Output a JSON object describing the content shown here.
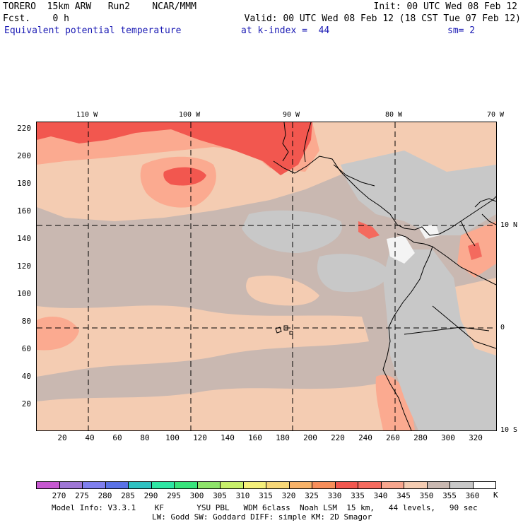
{
  "header": {
    "line1_left": "TORERO  15km ARW   Run2    NCAR/MMM",
    "line1_right": "Init: 00 UTC Wed 08 Feb 12",
    "line2_left": "Fcst.    0 h",
    "line2_right": "Valid: 00 UTC Wed 08 Feb 12 (18 CST Tue 07 Feb 12)",
    "field_name": "Equivalent potential temperature",
    "k_index": "at k-index =  44",
    "smoothing": "sm= 2"
  },
  "map": {
    "lon_labels": [
      "110 W",
      "100 W",
      "90 W",
      "80 W",
      "70 W"
    ],
    "lat_labels": [
      "10 N",
      "0",
      "10 S"
    ],
    "y_ticks": [
      "220",
      "200",
      "180",
      "160",
      "140",
      "120",
      "100",
      "80",
      "60",
      "40",
      "20"
    ],
    "x_ticks": [
      "20",
      "40",
      "60",
      "80",
      "100",
      "120",
      "140",
      "160",
      "180",
      "200",
      "220",
      "240",
      "260",
      "280",
      "300",
      "320"
    ],
    "colors": {
      "background": "#c9b8b1",
      "light_peach": "#f4ccb2",
      "peach": "#fbaa90",
      "salmon": "#f88470",
      "red": "#f2574f",
      "gray": "#c8c8c8",
      "white": "#f4f4f4"
    }
  },
  "colorbar": {
    "unit": "K",
    "labels": [
      "270",
      "275",
      "280",
      "285",
      "290",
      "295",
      "300",
      "305",
      "310",
      "315",
      "320",
      "325",
      "330",
      "335",
      "340",
      "345",
      "350",
      "355",
      "360"
    ],
    "colors": [
      "#c658d0",
      "#9f77d6",
      "#7f7fee",
      "#5a72e6",
      "#2fc2c2",
      "#2ee6a4",
      "#38e47c",
      "#8ee46a",
      "#c8f06a",
      "#f5f07a",
      "#f8d878",
      "#f7b268",
      "#f88e5a",
      "#f2574f",
      "#f46a5e",
      "#f8a68e",
      "#f4ccb2",
      "#c9b8b1",
      "#c8c8c8",
      "#ffffff"
    ]
  },
  "footer": {
    "line1": "Model Info: V3.3.1    KF       YSU PBL   WDM 6class  Noah LSM  15 km,   44 levels,   90 sec",
    "line2": "LW: Godd SW: Goddard DIFF: simple KM: 2D Smagor"
  }
}
